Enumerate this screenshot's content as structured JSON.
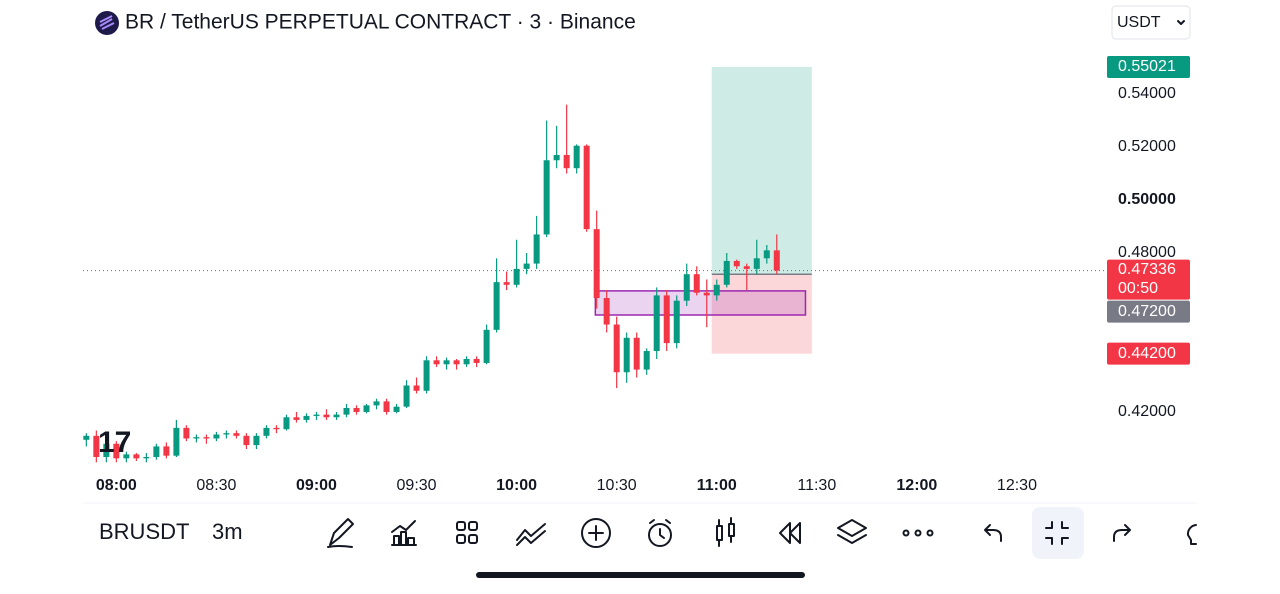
{
  "header": {
    "title": "BR / TetherUS PERPETUAL CONTRACT · 3 · Binance",
    "currency": "USDT"
  },
  "chart_data": {
    "type": "candlestick",
    "x": [
      471,
      474,
      477,
      480,
      483,
      486,
      489,
      492,
      495,
      498,
      501,
      504,
      507,
      510,
      513,
      516,
      519,
      522,
      525,
      528,
      531,
      534,
      537,
      540,
      543,
      546,
      549,
      552,
      555,
      558,
      561,
      564,
      567,
      570,
      573,
      576,
      579,
      582,
      585,
      588,
      591,
      594,
      597,
      600,
      603,
      606,
      609,
      612,
      615,
      618,
      621,
      624,
      627,
      630,
      633,
      636,
      639,
      642,
      645,
      648,
      651,
      654,
      657,
      660,
      663,
      666,
      669,
      672,
      675,
      678
    ],
    "open": [
      0.4095,
      0.411,
      0.403,
      0.408,
      0.4025,
      0.404,
      0.4025,
      0.403,
      0.407,
      0.4035,
      0.414,
      0.41,
      0.4105,
      0.41,
      0.4115,
      0.412,
      0.411,
      0.4075,
      0.411,
      0.414,
      0.4135,
      0.418,
      0.417,
      0.4185,
      0.419,
      0.418,
      0.419,
      0.4215,
      0.42,
      0.4225,
      0.424,
      0.42,
      0.422,
      0.43,
      0.428,
      0.4395,
      0.438,
      0.4395,
      0.438,
      0.44,
      0.4385,
      0.451,
      0.469,
      0.468,
      0.474,
      0.476,
      0.487,
      0.515,
      0.517,
      0.512,
      0.5205,
      0.489,
      0.463,
      0.453,
      0.435,
      0.448,
      0.436,
      0.443,
      0.464,
      0.446,
      0.462,
      0.472,
      0.465,
      0.464,
      0.468,
      0.477,
      0.475,
      0.474,
      0.478,
      0.481
    ],
    "high": [
      0.412,
      0.413,
      0.41,
      0.409,
      0.405,
      0.4045,
      0.4045,
      0.408,
      0.4085,
      0.417,
      0.415,
      0.4115,
      0.4115,
      0.4125,
      0.413,
      0.413,
      0.412,
      0.412,
      0.415,
      0.415,
      0.419,
      0.42,
      0.4195,
      0.42,
      0.421,
      0.42,
      0.423,
      0.4225,
      0.423,
      0.425,
      0.425,
      0.423,
      0.432,
      0.433,
      0.441,
      0.441,
      0.4405,
      0.44,
      0.441,
      0.441,
      0.453,
      0.478,
      0.473,
      0.485,
      0.48,
      0.494,
      0.53,
      0.528,
      0.536,
      0.521,
      0.521,
      0.496,
      0.466,
      0.456,
      0.45,
      0.45,
      0.444,
      0.467,
      0.466,
      0.464,
      0.476,
      0.475,
      0.47,
      0.47,
      0.48,
      0.4775,
      0.476,
      0.485,
      0.483,
      0.487
    ],
    "low": [
      0.407,
      0.401,
      0.401,
      0.401,
      0.401,
      0.4015,
      0.401,
      0.402,
      0.4025,
      0.403,
      0.409,
      0.4085,
      0.408,
      0.409,
      0.41,
      0.41,
      0.406,
      0.406,
      0.41,
      0.412,
      0.413,
      0.416,
      0.416,
      0.417,
      0.417,
      0.417,
      0.418,
      0.419,
      0.4195,
      0.421,
      0.419,
      0.4195,
      0.4215,
      0.427,
      0.427,
      0.437,
      0.436,
      0.436,
      0.437,
      0.437,
      0.438,
      0.45,
      0.466,
      0.467,
      0.472,
      0.474,
      0.486,
      0.512,
      0.51,
      0.51,
      0.488,
      0.459,
      0.45,
      0.429,
      0.431,
      0.433,
      0.434,
      0.44,
      0.443,
      0.444,
      0.46,
      0.464,
      0.452,
      0.462,
      0.467,
      0.474,
      0.466,
      0.472,
      0.476,
      0.472
    ],
    "close": [
      0.411,
      0.403,
      0.408,
      0.4025,
      0.404,
      0.4025,
      0.403,
      0.407,
      0.4035,
      0.414,
      0.41,
      0.4105,
      0.41,
      0.4115,
      0.412,
      0.411,
      0.4075,
      0.411,
      0.414,
      0.4135,
      0.418,
      0.417,
      0.4185,
      0.419,
      0.418,
      0.419,
      0.4215,
      0.42,
      0.4225,
      0.424,
      0.42,
      0.422,
      0.43,
      0.428,
      0.4395,
      0.438,
      0.4395,
      0.438,
      0.44,
      0.4385,
      0.451,
      0.469,
      0.468,
      0.474,
      0.476,
      0.487,
      0.515,
      0.517,
      0.512,
      0.5205,
      0.489,
      0.463,
      0.453,
      0.435,
      0.448,
      0.436,
      0.443,
      0.464,
      0.446,
      0.462,
      0.472,
      0.465,
      0.464,
      0.468,
      0.477,
      0.475,
      0.474,
      0.478,
      0.481,
      0.47336
    ],
    "up_color": "#089981",
    "down_color": "#f23645",
    "xlim": [
      470,
      774
    ],
    "xticks": [
      {
        "value": 480,
        "label": "08:00"
      },
      {
        "value": 510,
        "label": "08:30"
      },
      {
        "value": 540,
        "label": "09:00"
      },
      {
        "value": 570,
        "label": "09:30"
      },
      {
        "value": 600,
        "label": "10:00"
      },
      {
        "value": 630,
        "label": "10:30"
      },
      {
        "value": 660,
        "label": "11:00"
      },
      {
        "value": 690,
        "label": "11:30"
      },
      {
        "value": 720,
        "label": "12:00"
      },
      {
        "value": 750,
        "label": "12:30"
      }
    ],
    "ylim": [
      0.3981,
      0.5585
    ],
    "yticks": [
      {
        "value": 0.42,
        "label": "0.42000"
      },
      {
        "value": 0.48,
        "label": "0.48000"
      },
      {
        "value": 0.5,
        "label": "0.50000"
      },
      {
        "value": 0.52,
        "label": "0.52000"
      },
      {
        "value": 0.54,
        "label": "0.54000"
      }
    ],
    "last_price": {
      "value": 0.47336,
      "label": "0.47336",
      "countdown": "00:50"
    },
    "zone": {
      "x": [
        623.6,
        686.6
      ],
      "y": [
        0.4566,
        0.4657
      ],
      "color": "#9c27b0"
    },
    "position": {
      "x": [
        658.5,
        688.5
      ],
      "target": {
        "value": 0.55021,
        "label": "0.55021"
      },
      "entry": {
        "value": 0.472,
        "label": "0.47200"
      },
      "stop": {
        "value": 0.442,
        "label": "0.44200"
      }
    }
  },
  "toolbar": {
    "symbol": "BRUSDT",
    "interval": "3m"
  }
}
